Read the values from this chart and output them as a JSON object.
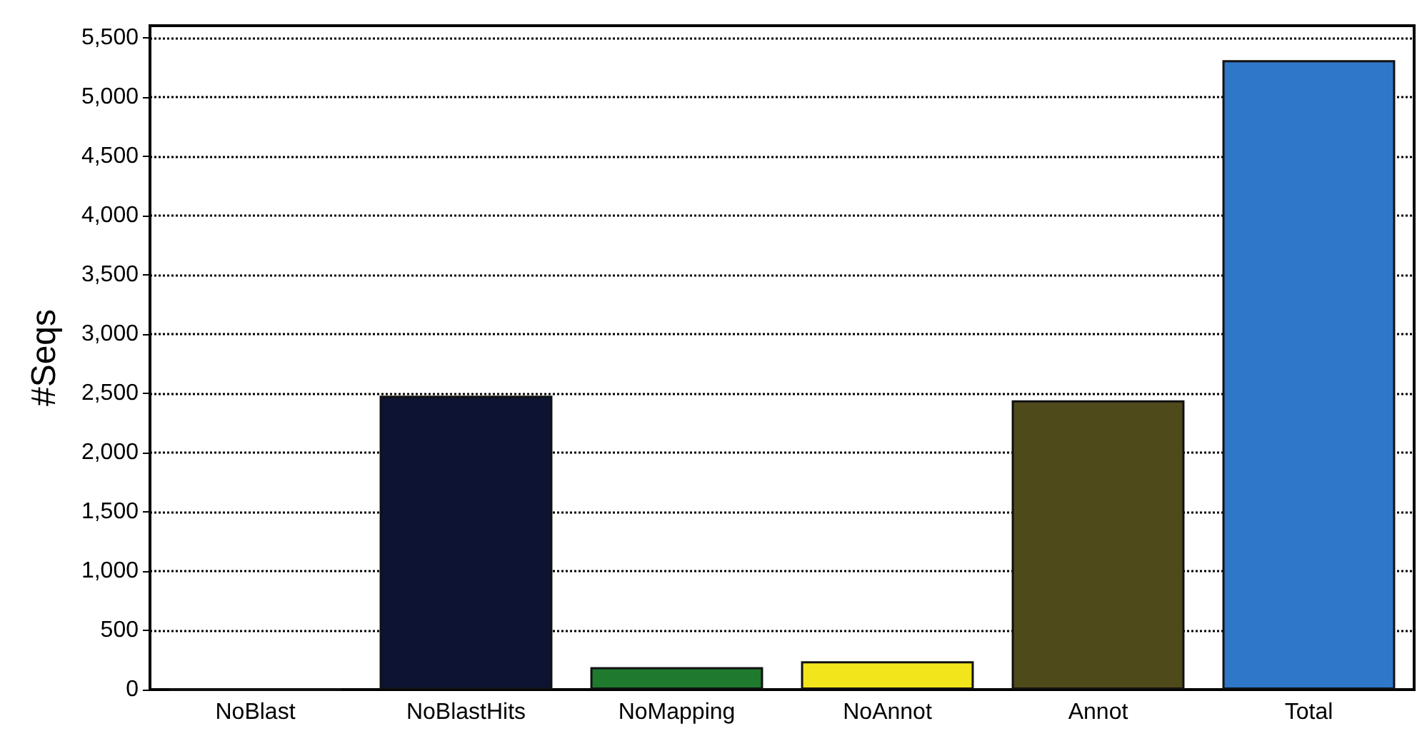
{
  "chart_data": {
    "type": "bar",
    "ylabel": "#Seqs",
    "categories": [
      "NoBlast",
      "NoBlastHits",
      "NoMapping",
      "NoAnnot",
      "Annot",
      "Total"
    ],
    "values": [
      0,
      2480,
      190,
      240,
      2440,
      5310
    ],
    "colors": [
      "#111111",
      "#0d1333",
      "#1f7a2e",
      "#f2e51c",
      "#4f4a1a",
      "#2f77c9"
    ],
    "ylim": [
      0,
      5600
    ],
    "yticks": [
      {
        "value": 0,
        "label": "0"
      },
      {
        "value": 500,
        "label": "500"
      },
      {
        "value": 1000,
        "label": "1,000"
      },
      {
        "value": 1500,
        "label": "1,500"
      },
      {
        "value": 2000,
        "label": "2,000"
      },
      {
        "value": 2500,
        "label": "2,500"
      },
      {
        "value": 3000,
        "label": "3,000"
      },
      {
        "value": 3500,
        "label": "3,500"
      },
      {
        "value": 4000,
        "label": "4,000"
      },
      {
        "value": 4500,
        "label": "4,500"
      },
      {
        "value": 5000,
        "label": "5,000"
      },
      {
        "value": 5500,
        "label": "5,500"
      }
    ],
    "grid": "y",
    "line_style": "dotted"
  }
}
